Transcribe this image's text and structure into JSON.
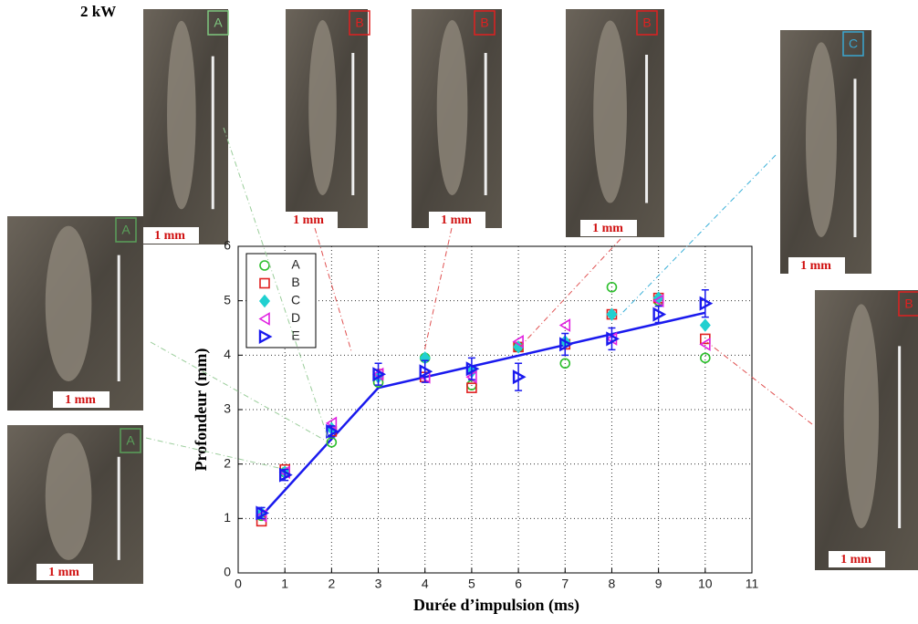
{
  "chart_data": {
    "type": "scatter",
    "caption": "2 kW",
    "x_label": "Durée d’impulsion (ms)",
    "y_label": "Profondeur (mm)",
    "x": [
      0.5,
      1,
      2,
      3,
      4,
      5,
      6,
      7,
      8,
      9,
      10
    ],
    "xlim": [
      0,
      11
    ],
    "xticks": [
      0,
      1,
      2,
      3,
      4,
      5,
      6,
      7,
      8,
      9,
      10,
      11
    ],
    "ylim": [
      0,
      6
    ],
    "yticks": [
      0,
      1,
      2,
      3,
      4,
      5,
      6
    ],
    "grid": true,
    "legend": "upper-left",
    "series": [
      {
        "name": "A",
        "color": "#2dbf2d",
        "marker": "circle",
        "values": [
          1.05,
          1.85,
          2.4,
          3.5,
          3.95,
          3.45,
          4.15,
          3.85,
          5.25,
          5.0,
          3.95
        ]
      },
      {
        "name": "B",
        "color": "#e02020",
        "marker": "square",
        "values": [
          0.95,
          1.9,
          2.6,
          3.65,
          3.6,
          3.4,
          4.15,
          4.2,
          4.75,
          5.05,
          4.3
        ]
      },
      {
        "name": "C",
        "color": "#20d0d0",
        "marker": "diamond",
        "values": [
          1.1,
          1.85,
          2.65,
          3.6,
          3.95,
          3.7,
          4.15,
          4.25,
          4.75,
          5.05,
          4.55
        ]
      },
      {
        "name": "D",
        "color": "#e020e0",
        "marker": "triangle-left",
        "values": [
          1.05,
          1.85,
          2.75,
          3.65,
          3.6,
          3.6,
          4.25,
          4.55,
          4.3,
          5.0,
          4.2
        ]
      },
      {
        "name": "E",
        "color": "#1a1aee",
        "marker": "triangle-right",
        "values": [
          1.1,
          1.8,
          2.6,
          3.65,
          3.7,
          3.75,
          3.6,
          4.2,
          4.3,
          4.75,
          4.95
        ],
        "errors": [
          0.1,
          0.1,
          0.1,
          0.2,
          0.2,
          0.2,
          0.25,
          0.2,
          0.2,
          0.15,
          0.25
        ]
      }
    ],
    "fit": {
      "color": "#1a1aee",
      "x": [
        0.5,
        3,
        10
      ],
      "values": [
        1.05,
        3.4,
        4.78
      ]
    },
    "insets": [
      {
        "letter": "A",
        "color": "#7fc77f",
        "scale": "1 mm"
      },
      {
        "letter": "B",
        "color": "#e02020",
        "scale": "1 mm"
      },
      {
        "letter": "B",
        "color": "#e02020",
        "scale": "1 mm"
      },
      {
        "letter": "B",
        "color": "#e02020",
        "scale": "1 mm"
      },
      {
        "letter": "C",
        "color": "#3aa6d0",
        "scale": "1 mm"
      },
      {
        "letter": "B",
        "color": "#e02020",
        "scale": "1 mm"
      },
      {
        "letter": "A",
        "color": "#5aa05a",
        "scale": "1 mm"
      },
      {
        "letter": "A",
        "color": "#5aa05a",
        "scale": "1 mm"
      }
    ]
  }
}
